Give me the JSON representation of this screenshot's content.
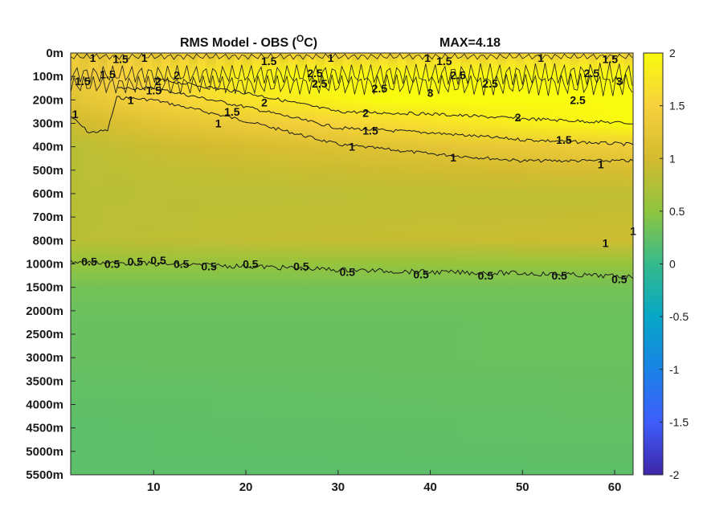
{
  "chart_data": {
    "type": "heatmap",
    "title": "RMS Model - OBS (",
    "title_superscript": "O",
    "title_suffix": "C)",
    "max_label": "MAX=4.18",
    "x_ticks": [
      10,
      20,
      30,
      40,
      50,
      60
    ],
    "x_range": [
      1,
      62
    ],
    "y_ticks": [
      "0m",
      "100m",
      "200m",
      "300m",
      "400m",
      "500m",
      "600m",
      "700m",
      "800m",
      "1000m",
      "1500m",
      "2000m",
      "2500m",
      "3000m",
      "3500m",
      "4000m",
      "4500m",
      "5000m",
      "5500m"
    ],
    "colorbar": {
      "range": [
        -2,
        2
      ],
      "ticks": [
        "2",
        "1.5",
        "1",
        "0.5",
        "0",
        "-0.5",
        "-1",
        "-1.5",
        "-2"
      ],
      "colormap": "parula"
    },
    "field_profile": {
      "depth_levels": [
        "0m",
        "100m",
        "200m",
        "300m",
        "400m",
        "500m",
        "600m",
        "700m",
        "800m",
        "1000m",
        "1500m",
        "2000m",
        "2500m",
        "3000m",
        "3500m",
        "4000m",
        "4500m",
        "5000m",
        "5500m"
      ],
      "rms_x1": [
        1.4,
        1.3,
        1.2,
        0.95,
        0.8,
        0.8,
        0.8,
        0.8,
        0.8,
        0.55,
        0.35,
        0.3,
        0.28,
        0.28,
        0.26,
        0.24,
        0.22,
        0.22,
        0.22
      ],
      "rms_x62": [
        1.6,
        2.8,
        2.5,
        2.0,
        1.4,
        1.05,
        0.85,
        0.9,
        0.95,
        0.55,
        0.35,
        0.3,
        0.3,
        0.3,
        0.28,
        0.27,
        0.26,
        0.24,
        0.22
      ]
    },
    "contours": [
      {
        "level": "1",
        "x": [
          1,
          3,
          5,
          6,
          10,
          20,
          30,
          40,
          50,
          62
        ],
        "depth_index": [
          2.7,
          3.4,
          3.3,
          1.9,
          2.0,
          2.9,
          3.9,
          4.3,
          4.6,
          4.6
        ]
      },
      {
        "level": "1.5",
        "x": [
          6,
          10,
          20,
          30,
          40,
          50,
          62
        ],
        "depth_index": [
          1.5,
          1.5,
          2.3,
          3.2,
          3.4,
          3.7,
          3.9
        ]
      },
      {
        "level": "2",
        "x": [
          10,
          20,
          30,
          40,
          50,
          62
        ],
        "depth_index": [
          1.1,
          1.7,
          2.5,
          2.6,
          2.8,
          3.0
        ]
      },
      {
        "level": "0.5",
        "x": [
          1,
          10,
          20,
          30,
          40,
          50,
          62
        ],
        "depth_index": [
          8.9,
          9.0,
          9.1,
          9.25,
          9.35,
          9.4,
          9.55
        ]
      }
    ],
    "contour_labels": [
      {
        "text": "1",
        "x": 3.4,
        "y": 0.2
      },
      {
        "text": "1.5",
        "x": 6.4,
        "y": 0.25
      },
      {
        "text": "1",
        "x": 9.0,
        "y": 0.2
      },
      {
        "text": "1",
        "x": 29.2,
        "y": 0.2
      },
      {
        "text": "1",
        "x": 39.7,
        "y": 0.2
      },
      {
        "text": "1",
        "x": 52.0,
        "y": 0.2
      },
      {
        "text": "1.5",
        "x": 22.5,
        "y": 0.35
      },
      {
        "text": "1.5",
        "x": 41.5,
        "y": 0.35
      },
      {
        "text": "1.5",
        "x": 59.5,
        "y": 0.25
      },
      {
        "text": "1.5",
        "x": 2.3,
        "y": 1.2
      },
      {
        "text": "1.5",
        "x": 5.0,
        "y": 0.9
      },
      {
        "text": "2",
        "x": 10.5,
        "y": 1.2
      },
      {
        "text": "2",
        "x": 12.5,
        "y": 0.95
      },
      {
        "text": "2.5",
        "x": 27.5,
        "y": 0.85
      },
      {
        "text": "2.5",
        "x": 28.0,
        "y": 1.3
      },
      {
        "text": "2.5",
        "x": 34.5,
        "y": 1.5
      },
      {
        "text": "2.5",
        "x": 43.0,
        "y": 0.95
      },
      {
        "text": "2.5",
        "x": 46.5,
        "y": 1.3
      },
      {
        "text": "2.5",
        "x": 57.5,
        "y": 0.85
      },
      {
        "text": "3",
        "x": 60.5,
        "y": 1.2
      },
      {
        "text": "3",
        "x": 40.0,
        "y": 1.7
      },
      {
        "text": "2.5",
        "x": 56.0,
        "y": 2.0
      },
      {
        "text": "1",
        "x": 7.5,
        "y": 2.0
      },
      {
        "text": "1.5",
        "x": 10.0,
        "y": 1.6
      },
      {
        "text": "1",
        "x": 1.5,
        "y": 2.6
      },
      {
        "text": "1.5",
        "x": 18.5,
        "y": 2.5
      },
      {
        "text": "2",
        "x": 22.0,
        "y": 2.1
      },
      {
        "text": "1",
        "x": 17.0,
        "y": 3.0
      },
      {
        "text": "2",
        "x": 33.0,
        "y": 2.55
      },
      {
        "text": "2",
        "x": 49.5,
        "y": 2.75
      },
      {
        "text": "1.5",
        "x": 33.5,
        "y": 3.3
      },
      {
        "text": "1.5",
        "x": 54.5,
        "y": 3.7
      },
      {
        "text": "1",
        "x": 31.5,
        "y": 4.0
      },
      {
        "text": "1",
        "x": 42.5,
        "y": 4.45
      },
      {
        "text": "1",
        "x": 58.5,
        "y": 4.75
      },
      {
        "text": "1",
        "x": 59.0,
        "y": 8.1
      },
      {
        "text": "1",
        "x": 62.0,
        "y": 7.6
      },
      {
        "text": "0.5",
        "x": 3.0,
        "y": 8.9
      },
      {
        "text": "0.5",
        "x": 5.5,
        "y": 9.0
      },
      {
        "text": "0.5",
        "x": 8.0,
        "y": 8.9
      },
      {
        "text": "0.5",
        "x": 10.5,
        "y": 8.85
      },
      {
        "text": "0.5",
        "x": 13.0,
        "y": 9.0
      },
      {
        "text": "0.5",
        "x": 16.0,
        "y": 9.1
      },
      {
        "text": "0.5",
        "x": 20.5,
        "y": 9.0
      },
      {
        "text": "0.5",
        "x": 26.0,
        "y": 9.1
      },
      {
        "text": "0.5",
        "x": 31.0,
        "y": 9.35
      },
      {
        "text": "0.5",
        "x": 39.0,
        "y": 9.45
      },
      {
        "text": "0.5",
        "x": 46.0,
        "y": 9.5
      },
      {
        "text": "0.5",
        "x": 54.0,
        "y": 9.5
      },
      {
        "text": "0.5",
        "x": 60.5,
        "y": 9.65
      }
    ]
  }
}
